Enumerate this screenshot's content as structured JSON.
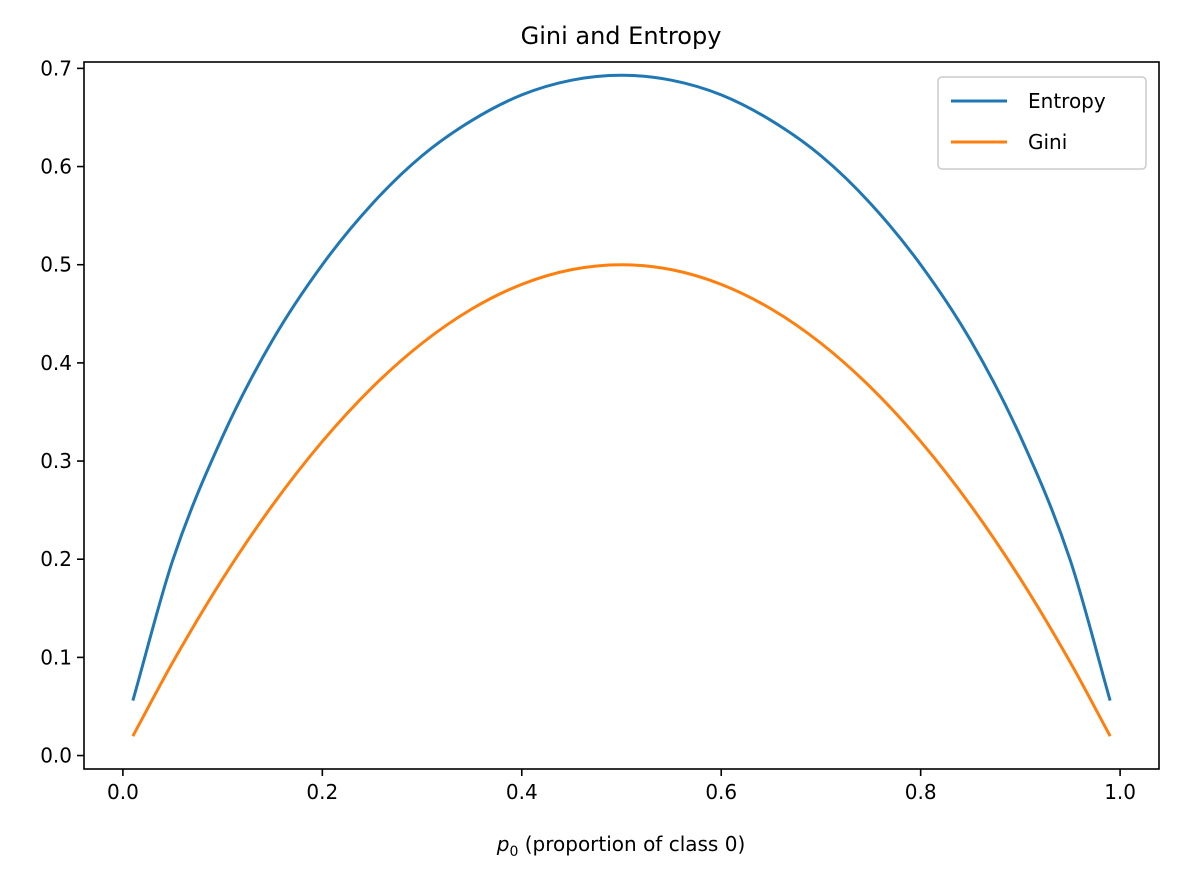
{
  "chart_data": {
    "type": "line",
    "title": "Gini and Entropy",
    "xlabel_var": "p",
    "xlabel_sub": "0",
    "xlabel_rest": " (proportion of class 0)",
    "ylabel": "",
    "xlim": [
      -0.039,
      1.039
    ],
    "ylim": [
      -0.0137,
      0.7065
    ],
    "x_ticks": [
      0.0,
      0.2,
      0.4,
      0.6,
      0.8,
      1.0
    ],
    "x_tick_labels": [
      "0.0",
      "0.2",
      "0.4",
      "0.6",
      "0.8",
      "1.0"
    ],
    "y_ticks": [
      0.0,
      0.1,
      0.2,
      0.3,
      0.4,
      0.5,
      0.6,
      0.7
    ],
    "y_tick_labels": [
      "0.0",
      "0.1",
      "0.2",
      "0.3",
      "0.4",
      "0.5",
      "0.6",
      "0.7"
    ],
    "grid": false,
    "legend_position": "top-right",
    "x": [
      0.01,
      0.05,
      0.1,
      0.15,
      0.2,
      0.25,
      0.3,
      0.35,
      0.4,
      0.45,
      0.5,
      0.55,
      0.6,
      0.65,
      0.7,
      0.75,
      0.8,
      0.85,
      0.9,
      0.95,
      0.99
    ],
    "series": [
      {
        "name": "Entropy",
        "color": "#1f77b4",
        "values": [
          0.056,
          0.199,
          0.325,
          0.423,
          0.5,
          0.562,
          0.611,
          0.647,
          0.673,
          0.688,
          0.693,
          0.688,
          0.673,
          0.647,
          0.611,
          0.562,
          0.5,
          0.423,
          0.325,
          0.199,
          0.056
        ]
      },
      {
        "name": "Gini",
        "color": "#ff7f0e",
        "values": [
          0.0198,
          0.095,
          0.18,
          0.255,
          0.32,
          0.375,
          0.42,
          0.455,
          0.48,
          0.495,
          0.5,
          0.495,
          0.48,
          0.455,
          0.42,
          0.375,
          0.32,
          0.255,
          0.18,
          0.095,
          0.0198
        ]
      }
    ]
  }
}
